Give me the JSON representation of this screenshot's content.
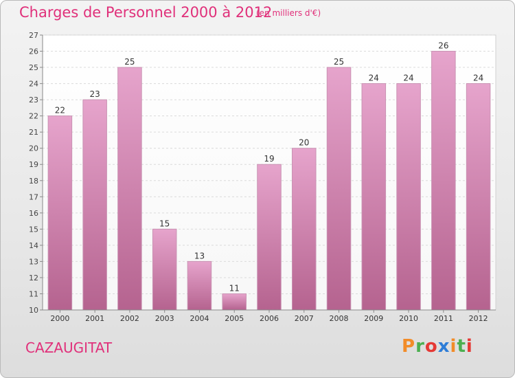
{
  "header": {
    "title": "Charges de Personnel 2000 à 2012",
    "subtitle": "(en milliers d'€)"
  },
  "footer": {
    "commune": "CAZAUGITAT",
    "logo_text": "Proxiti",
    "logo_colors": [
      "#f28c28",
      "#4caf50",
      "#e53935",
      "#2e7dd7",
      "#f28c28",
      "#4caf50",
      "#e53935"
    ]
  },
  "colors": {
    "bar_light": "#e6a4cc",
    "bar_dark": "#b5638f",
    "accent": "#e0307a"
  },
  "chart_data": {
    "type": "bar",
    "categories": [
      "2000",
      "2001",
      "2002",
      "2003",
      "2004",
      "2005",
      "2006",
      "2007",
      "2008",
      "2009",
      "2010",
      "2011",
      "2012"
    ],
    "values": [
      22,
      23,
      25,
      15,
      13,
      11,
      19,
      20,
      25,
      24,
      24,
      26,
      24
    ],
    "ylim": [
      10,
      27
    ],
    "yticks": [
      10,
      11,
      12,
      13,
      14,
      15,
      16,
      17,
      18,
      19,
      20,
      21,
      22,
      23,
      24,
      25,
      26,
      27
    ],
    "grid": true
  }
}
